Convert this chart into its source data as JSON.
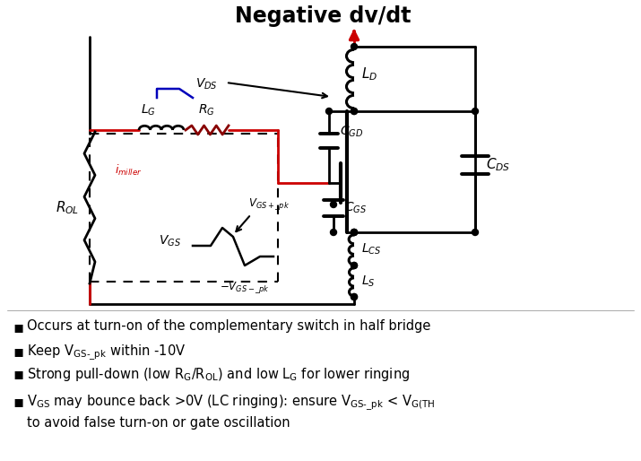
{
  "title": "Negative dv/dt",
  "bg": "#ffffff",
  "title_fontsize": 17,
  "bullet_fontsize": 10.5,
  "circuit_color": "#000000",
  "red_color": "#cc0000",
  "blue_color": "#0000bb",
  "dark_red": "#880000"
}
